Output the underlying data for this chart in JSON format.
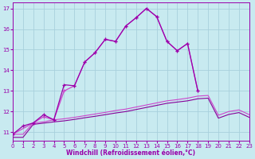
{
  "xlabel": "Windchill (Refroidissement éolien,°C)",
  "bg_color": "#c8eaf0",
  "grid_color": "#a8d0dc",
  "xlim": [
    0,
    23
  ],
  "ylim": [
    10.6,
    17.3
  ],
  "xticks": [
    0,
    1,
    2,
    3,
    4,
    5,
    6,
    7,
    8,
    9,
    10,
    11,
    12,
    13,
    14,
    15,
    16,
    17,
    18,
    19,
    20,
    21,
    22,
    23
  ],
  "yticks": [
    11,
    12,
    13,
    14,
    15,
    16,
    17
  ],
  "color_peak": "#9900aa",
  "color_peak2": "#cc44cc",
  "color_flat1": "#880099",
  "color_flat2": "#bb22bb",
  "line1_x": [
    0,
    1,
    2,
    3,
    4,
    5,
    6,
    7,
    8,
    9,
    10,
    11,
    12,
    13,
    14,
    15,
    16,
    17,
    18
  ],
  "line1_y": [
    10.9,
    11.3,
    11.45,
    11.85,
    11.6,
    13.3,
    13.25,
    14.4,
    14.85,
    15.5,
    15.4,
    16.15,
    16.55,
    17.0,
    16.6,
    15.4,
    14.95,
    15.3,
    13.0
  ],
  "line2_x": [
    0,
    2,
    3,
    4,
    5,
    6,
    7,
    8,
    9,
    10,
    11,
    12,
    13,
    14,
    15,
    16,
    17,
    18
  ],
  "line2_y": [
    10.9,
    11.45,
    11.75,
    11.6,
    13.0,
    13.25,
    14.4,
    14.85,
    15.5,
    15.4,
    16.15,
    16.55,
    17.0,
    16.6,
    15.4,
    14.95,
    15.3,
    13.0
  ],
  "line3_x": [
    0,
    1,
    2,
    3,
    4,
    5,
    6,
    7,
    8,
    9,
    10,
    11,
    12,
    13,
    14,
    15,
    16,
    17,
    18,
    19,
    20,
    21,
    22,
    23
  ],
  "line3_y": [
    10.9,
    10.9,
    11.45,
    11.5,
    11.6,
    11.65,
    11.72,
    11.8,
    11.88,
    11.96,
    12.05,
    12.12,
    12.22,
    12.32,
    12.42,
    12.52,
    12.58,
    12.65,
    12.75,
    12.78,
    11.82,
    12.0,
    12.08,
    11.85
  ],
  "line4_x": [
    0,
    1,
    2,
    3,
    4,
    5,
    6,
    7,
    8,
    9,
    10,
    11,
    12,
    13,
    14,
    15,
    16,
    17,
    18,
    19,
    20,
    21,
    22,
    23
  ],
  "line4_y": [
    10.75,
    10.75,
    11.38,
    11.44,
    11.5,
    11.55,
    11.62,
    11.7,
    11.77,
    11.85,
    11.93,
    12.0,
    12.1,
    12.2,
    12.3,
    12.4,
    12.46,
    12.52,
    12.62,
    12.65,
    11.68,
    11.86,
    11.95,
    11.72
  ]
}
